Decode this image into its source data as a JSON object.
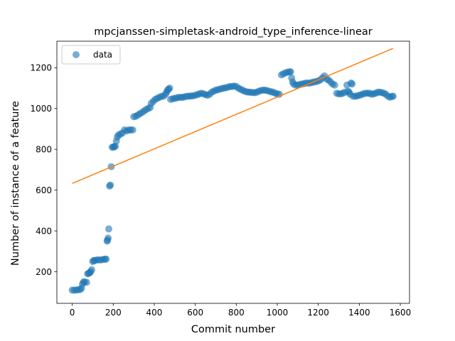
{
  "chart_data": {
    "type": "scatter",
    "title": "mpcjanssen-simpletask-android_type_inference-linear",
    "xlabel": "Commit number",
    "ylabel": "Number of instance of a feature",
    "xlim": [
      -75,
      1645
    ],
    "ylim": [
      45,
      1330
    ],
    "xticks": [
      0,
      200,
      400,
      600,
      800,
      1000,
      1200,
      1400,
      1600
    ],
    "yticks": [
      200,
      400,
      600,
      800,
      1000,
      1200
    ],
    "grid": false,
    "legend": {
      "placement": "top-left",
      "entries": [
        "data"
      ]
    },
    "colors": {
      "scatter": "#1f77b4",
      "fit": "#ff7f0e"
    },
    "series": [
      {
        "name": "data",
        "kind": "scatter",
        "points": [
          [
            0,
            110
          ],
          [
            10,
            110
          ],
          [
            20,
            110
          ],
          [
            30,
            112
          ],
          [
            40,
            113
          ],
          [
            45,
            120
          ],
          [
            50,
            140
          ],
          [
            55,
            150
          ],
          [
            60,
            150
          ],
          [
            70,
            148
          ],
          [
            75,
            190
          ],
          [
            80,
            192
          ],
          [
            85,
            195
          ],
          [
            90,
            200
          ],
          [
            95,
            210
          ],
          [
            100,
            250
          ],
          [
            105,
            255
          ],
          [
            110,
            255
          ],
          [
            120,
            258
          ],
          [
            130,
            258
          ],
          [
            140,
            258
          ],
          [
            150,
            260
          ],
          [
            160,
            262
          ],
          [
            165,
            262
          ],
          [
            170,
            350
          ],
          [
            172,
            355
          ],
          [
            175,
            365
          ],
          [
            178,
            410
          ],
          [
            182,
            620
          ],
          [
            186,
            625
          ],
          [
            190,
            715
          ],
          [
            195,
            810
          ],
          [
            200,
            812
          ],
          [
            205,
            812
          ],
          [
            210,
            815
          ],
          [
            215,
            840
          ],
          [
            220,
            860
          ],
          [
            225,
            870
          ],
          [
            235,
            875
          ],
          [
            245,
            880
          ],
          [
            255,
            895
          ],
          [
            265,
            890
          ],
          [
            275,
            895
          ],
          [
            285,
            895
          ],
          [
            295,
            895
          ],
          [
            300,
            960
          ],
          [
            310,
            962
          ],
          [
            320,
            968
          ],
          [
            330,
            975
          ],
          [
            340,
            980
          ],
          [
            350,
            988
          ],
          [
            360,
            995
          ],
          [
            370,
            1000
          ],
          [
            380,
            1005
          ],
          [
            385,
            1025
          ],
          [
            395,
            1035
          ],
          [
            405,
            1045
          ],
          [
            415,
            1050
          ],
          [
            425,
            1055
          ],
          [
            435,
            1060
          ],
          [
            445,
            1060
          ],
          [
            455,
            1070
          ],
          [
            460,
            1080
          ],
          [
            465,
            1090
          ],
          [
            470,
            1095
          ],
          [
            475,
            1100
          ],
          [
            480,
            1045
          ],
          [
            490,
            1048
          ],
          [
            500,
            1050
          ],
          [
            510,
            1052
          ],
          [
            520,
            1055
          ],
          [
            530,
            1055
          ],
          [
            540,
            1055
          ],
          [
            550,
            1058
          ],
          [
            560,
            1060
          ],
          [
            570,
            1060
          ],
          [
            580,
            1062
          ],
          [
            590,
            1062
          ],
          [
            600,
            1065
          ],
          [
            610,
            1068
          ],
          [
            620,
            1072
          ],
          [
            630,
            1075
          ],
          [
            640,
            1072
          ],
          [
            650,
            1068
          ],
          [
            660,
            1065
          ],
          [
            670,
            1070
          ],
          [
            680,
            1080
          ],
          [
            690,
            1085
          ],
          [
            700,
            1090
          ],
          [
            710,
            1092
          ],
          [
            720,
            1095
          ],
          [
            730,
            1098
          ],
          [
            740,
            1100
          ],
          [
            750,
            1102
          ],
          [
            760,
            1105
          ],
          [
            770,
            1108
          ],
          [
            780,
            1108
          ],
          [
            790,
            1110
          ],
          [
            800,
            1108
          ],
          [
            810,
            1100
          ],
          [
            820,
            1095
          ],
          [
            830,
            1090
          ],
          [
            840,
            1085
          ],
          [
            850,
            1082
          ],
          [
            860,
            1080
          ],
          [
            870,
            1080
          ],
          [
            880,
            1078
          ],
          [
            890,
            1078
          ],
          [
            900,
            1080
          ],
          [
            910,
            1085
          ],
          [
            920,
            1088
          ],
          [
            930,
            1090
          ],
          [
            940,
            1090
          ],
          [
            950,
            1088
          ],
          [
            960,
            1085
          ],
          [
            970,
            1082
          ],
          [
            980,
            1080
          ],
          [
            990,
            1075
          ],
          [
            1000,
            1072
          ],
          [
            1010,
            1070
          ],
          [
            1020,
            1165
          ],
          [
            1030,
            1170
          ],
          [
            1040,
            1175
          ],
          [
            1050,
            1178
          ],
          [
            1060,
            1180
          ],
          [
            1065,
            1180
          ],
          [
            1070,
            1150
          ],
          [
            1075,
            1130
          ],
          [
            1080,
            1120
          ],
          [
            1090,
            1115
          ],
          [
            1100,
            1115
          ],
          [
            1110,
            1118
          ],
          [
            1120,
            1120
          ],
          [
            1130,
            1122
          ],
          [
            1140,
            1125
          ],
          [
            1150,
            1125
          ],
          [
            1160,
            1125
          ],
          [
            1170,
            1128
          ],
          [
            1180,
            1130
          ],
          [
            1190,
            1132
          ],
          [
            1200,
            1135
          ],
          [
            1210,
            1140
          ],
          [
            1220,
            1150
          ],
          [
            1230,
            1160
          ],
          [
            1240,
            1145
          ],
          [
            1250,
            1140
          ],
          [
            1260,
            1130
          ],
          [
            1270,
            1120
          ],
          [
            1280,
            1115
          ],
          [
            1290,
            1075
          ],
          [
            1300,
            1072
          ],
          [
            1310,
            1072
          ],
          [
            1320,
            1075
          ],
          [
            1330,
            1080
          ],
          [
            1340,
            1115
          ],
          [
            1345,
            1085
          ],
          [
            1350,
            1080
          ],
          [
            1355,
            1070
          ],
          [
            1360,
            1125
          ],
          [
            1365,
            1120
          ],
          [
            1370,
            1060
          ],
          [
            1380,
            1060
          ],
          [
            1390,
            1062
          ],
          [
            1400,
            1065
          ],
          [
            1410,
            1068
          ],
          [
            1420,
            1072
          ],
          [
            1430,
            1075
          ],
          [
            1440,
            1075
          ],
          [
            1450,
            1075
          ],
          [
            1460,
            1070
          ],
          [
            1470,
            1072
          ],
          [
            1480,
            1075
          ],
          [
            1490,
            1080
          ],
          [
            1500,
            1080
          ],
          [
            1510,
            1078
          ],
          [
            1520,
            1075
          ],
          [
            1530,
            1070
          ],
          [
            1540,
            1060
          ],
          [
            1550,
            1055
          ],
          [
            1560,
            1060
          ],
          [
            1565,
            1060
          ]
        ]
      },
      {
        "kind": "line",
        "points": [
          [
            0,
            633
          ],
          [
            1565,
            1295
          ]
        ]
      }
    ]
  }
}
